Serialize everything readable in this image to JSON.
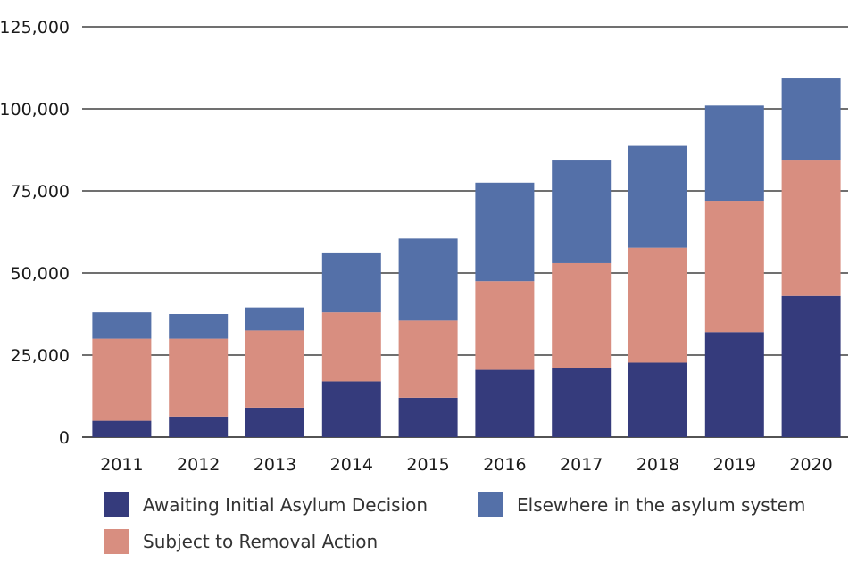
{
  "chart_data": {
    "type": "bar",
    "stacked": true,
    "title": "",
    "xlabel": "",
    "ylabel": "",
    "categories": [
      "2011",
      "2012",
      "2013",
      "2014",
      "2015",
      "2016",
      "2017",
      "2018",
      "2019",
      "2020"
    ],
    "series": [
      {
        "name": "Awaiting Initial Asylum Decision",
        "color": "#353b7c",
        "values": [
          5000,
          6300,
          9000,
          17000,
          12000,
          20500,
          21000,
          22700,
          32000,
          43000
        ]
      },
      {
        "name": "Subject to Removal Action",
        "color": "#d88e80",
        "values": [
          25000,
          23700,
          23500,
          21000,
          23500,
          27000,
          32000,
          35000,
          40000,
          41500
        ]
      },
      {
        "name": "Elsewhere in the asylum system",
        "color": "#5470a8",
        "values": [
          8000,
          7500,
          7000,
          18000,
          25000,
          30000,
          31500,
          31000,
          29000,
          25000
        ]
      }
    ],
    "ylim": [
      0,
      125000
    ],
    "yticks": [
      {
        "value": 0,
        "label": "0"
      },
      {
        "value": 25000,
        "label": "25,000"
      },
      {
        "value": 50000,
        "label": "50,000"
      },
      {
        "value": 75000,
        "label": "75,000"
      },
      {
        "value": 100000,
        "label": "100,000"
      },
      {
        "value": 125000,
        "label": "125,000"
      }
    ],
    "grid": true,
    "legend_position": "bottom"
  },
  "legend": [
    {
      "label": "Awaiting Initial Asylum Decision",
      "color": "#353b7c"
    },
    {
      "label": "Elsewhere in the asylum system",
      "color": "#5470a8"
    },
    {
      "label": "Subject to Removal Action",
      "color": "#d88e80"
    }
  ]
}
